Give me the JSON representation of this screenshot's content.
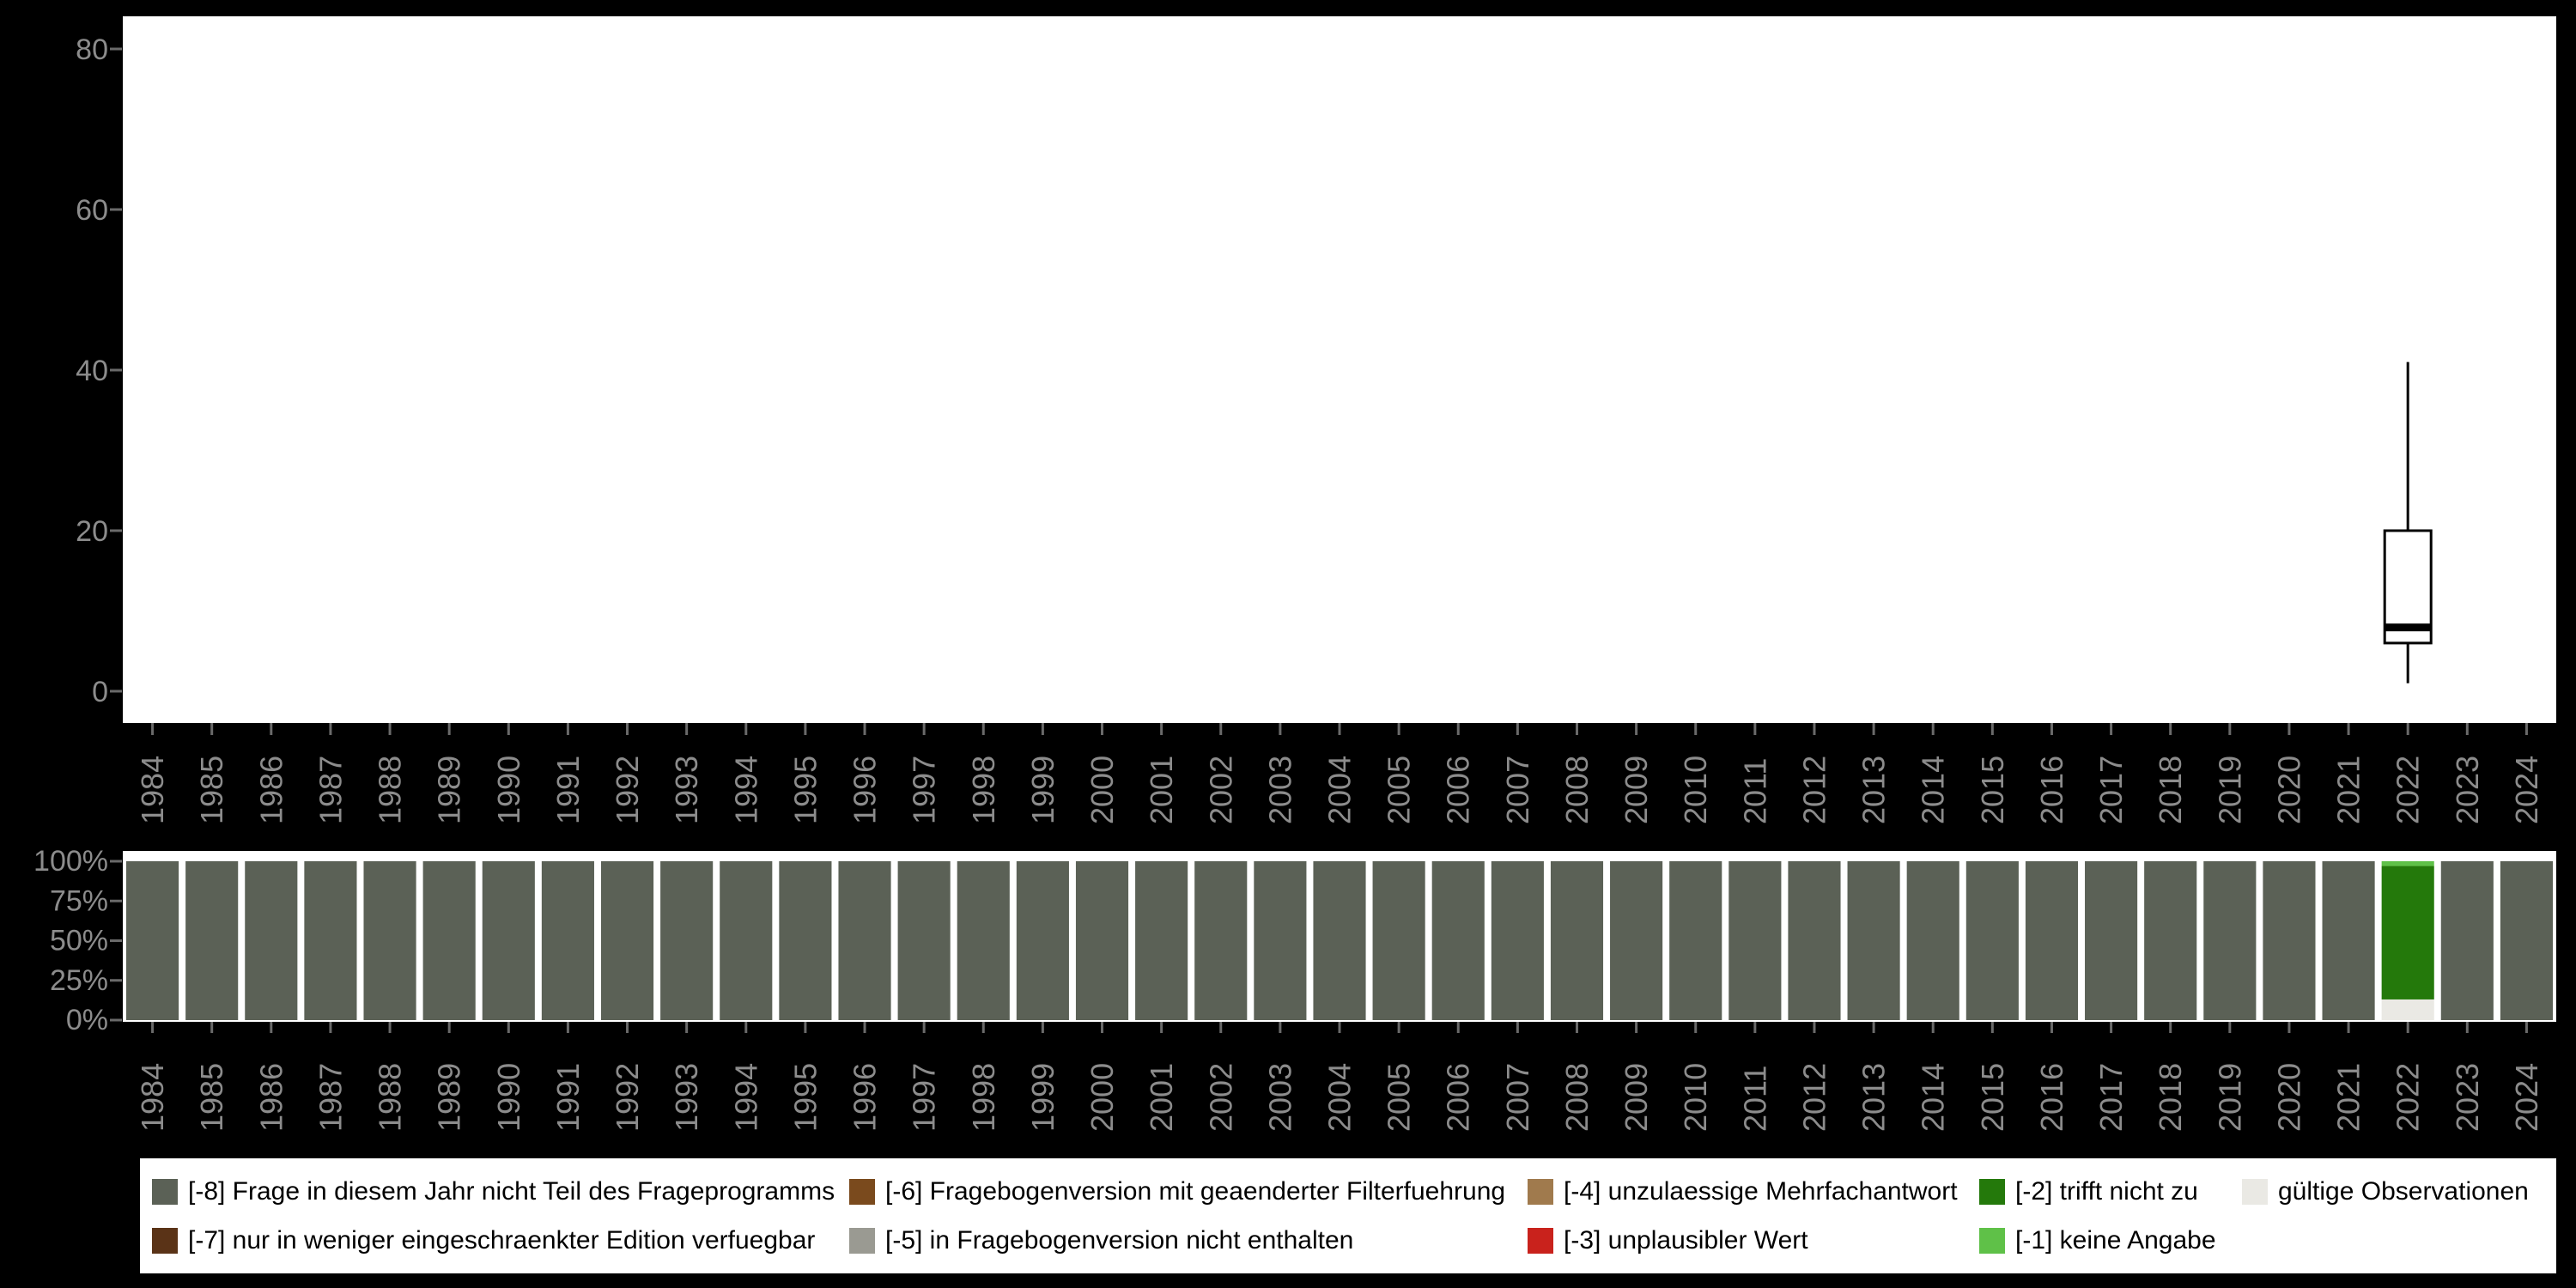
{
  "style": {
    "page_bg": "#000000",
    "panel_bg": "#ffffff",
    "axis_text_color": "#8c8c8c",
    "tick_color": "#6a6a6a",
    "box_stroke": "#000000"
  },
  "chart_data": [
    {
      "type": "boxplot",
      "title": "",
      "x_categories": [
        "1984",
        "1985",
        "1986",
        "1987",
        "1988",
        "1989",
        "1990",
        "1991",
        "1992",
        "1993",
        "1994",
        "1995",
        "1996",
        "1997",
        "1998",
        "1999",
        "2000",
        "2001",
        "2002",
        "2003",
        "2004",
        "2005",
        "2006",
        "2007",
        "2008",
        "2009",
        "2010",
        "2011",
        "2012",
        "2013",
        "2014",
        "2015",
        "2016",
        "2017",
        "2018",
        "2019",
        "2020",
        "2021",
        "2022",
        "2023",
        "2024"
      ],
      "ylim": [
        0,
        80
      ],
      "yticks": [
        0,
        20,
        40,
        60,
        80
      ],
      "grid": false,
      "legend_position": "none",
      "boxes": [
        {
          "category": "2022",
          "whisker_low": 1,
          "q1": 6,
          "median": 8,
          "q3": 20,
          "whisker_high": 41
        }
      ]
    },
    {
      "type": "stacked-bar-percent",
      "title": "",
      "x_categories": [
        "1984",
        "1985",
        "1986",
        "1987",
        "1988",
        "1989",
        "1990",
        "1991",
        "1992",
        "1993",
        "1994",
        "1995",
        "1996",
        "1997",
        "1998",
        "1999",
        "2000",
        "2001",
        "2002",
        "2003",
        "2004",
        "2005",
        "2006",
        "2007",
        "2008",
        "2009",
        "2010",
        "2011",
        "2012",
        "2013",
        "2014",
        "2015",
        "2016",
        "2017",
        "2018",
        "2019",
        "2020",
        "2021",
        "2022",
        "2023",
        "2024"
      ],
      "yticks": [
        0,
        25,
        50,
        75,
        100
      ],
      "ytick_suffix": "%",
      "default_key": "-8",
      "bars": [
        {
          "category": "2022",
          "segments": [
            {
              "key": "valid",
              "pct": 13
            },
            {
              "key": "-2",
              "pct": 84
            },
            {
              "key": "-1",
              "pct": 3
            }
          ]
        }
      ]
    }
  ],
  "legend": {
    "items": [
      {
        "key": "-8",
        "label": "[-8] Frage in diesem Jahr nicht Teil des Frageprogramms",
        "color": "#5b6156"
      },
      {
        "key": "-7",
        "label": "[-7] nur in weniger eingeschraenkter Edition verfuegbar",
        "color": "#5a3317"
      },
      {
        "key": "-6",
        "label": "[-6] Fragebogenversion mit geaenderter Filterfuehrung",
        "color": "#7a4a1d"
      },
      {
        "key": "-5",
        "label": "[-5] in Fragebogenversion nicht enthalten",
        "color": "#9a9a92"
      },
      {
        "key": "-4",
        "label": "[-4] unzulaessige Mehrfachantwort",
        "color": "#a07a4d"
      },
      {
        "key": "-3",
        "label": "[-3] unplausibler Wert",
        "color": "#c9221c"
      },
      {
        "key": "-2",
        "label": "[-2] trifft nicht zu",
        "color": "#24790b"
      },
      {
        "key": "-1",
        "label": "[-1] keine Angabe",
        "color": "#5fc148"
      },
      {
        "key": "valid",
        "label": "gültige Observationen",
        "color": "#eae9e4"
      }
    ]
  }
}
